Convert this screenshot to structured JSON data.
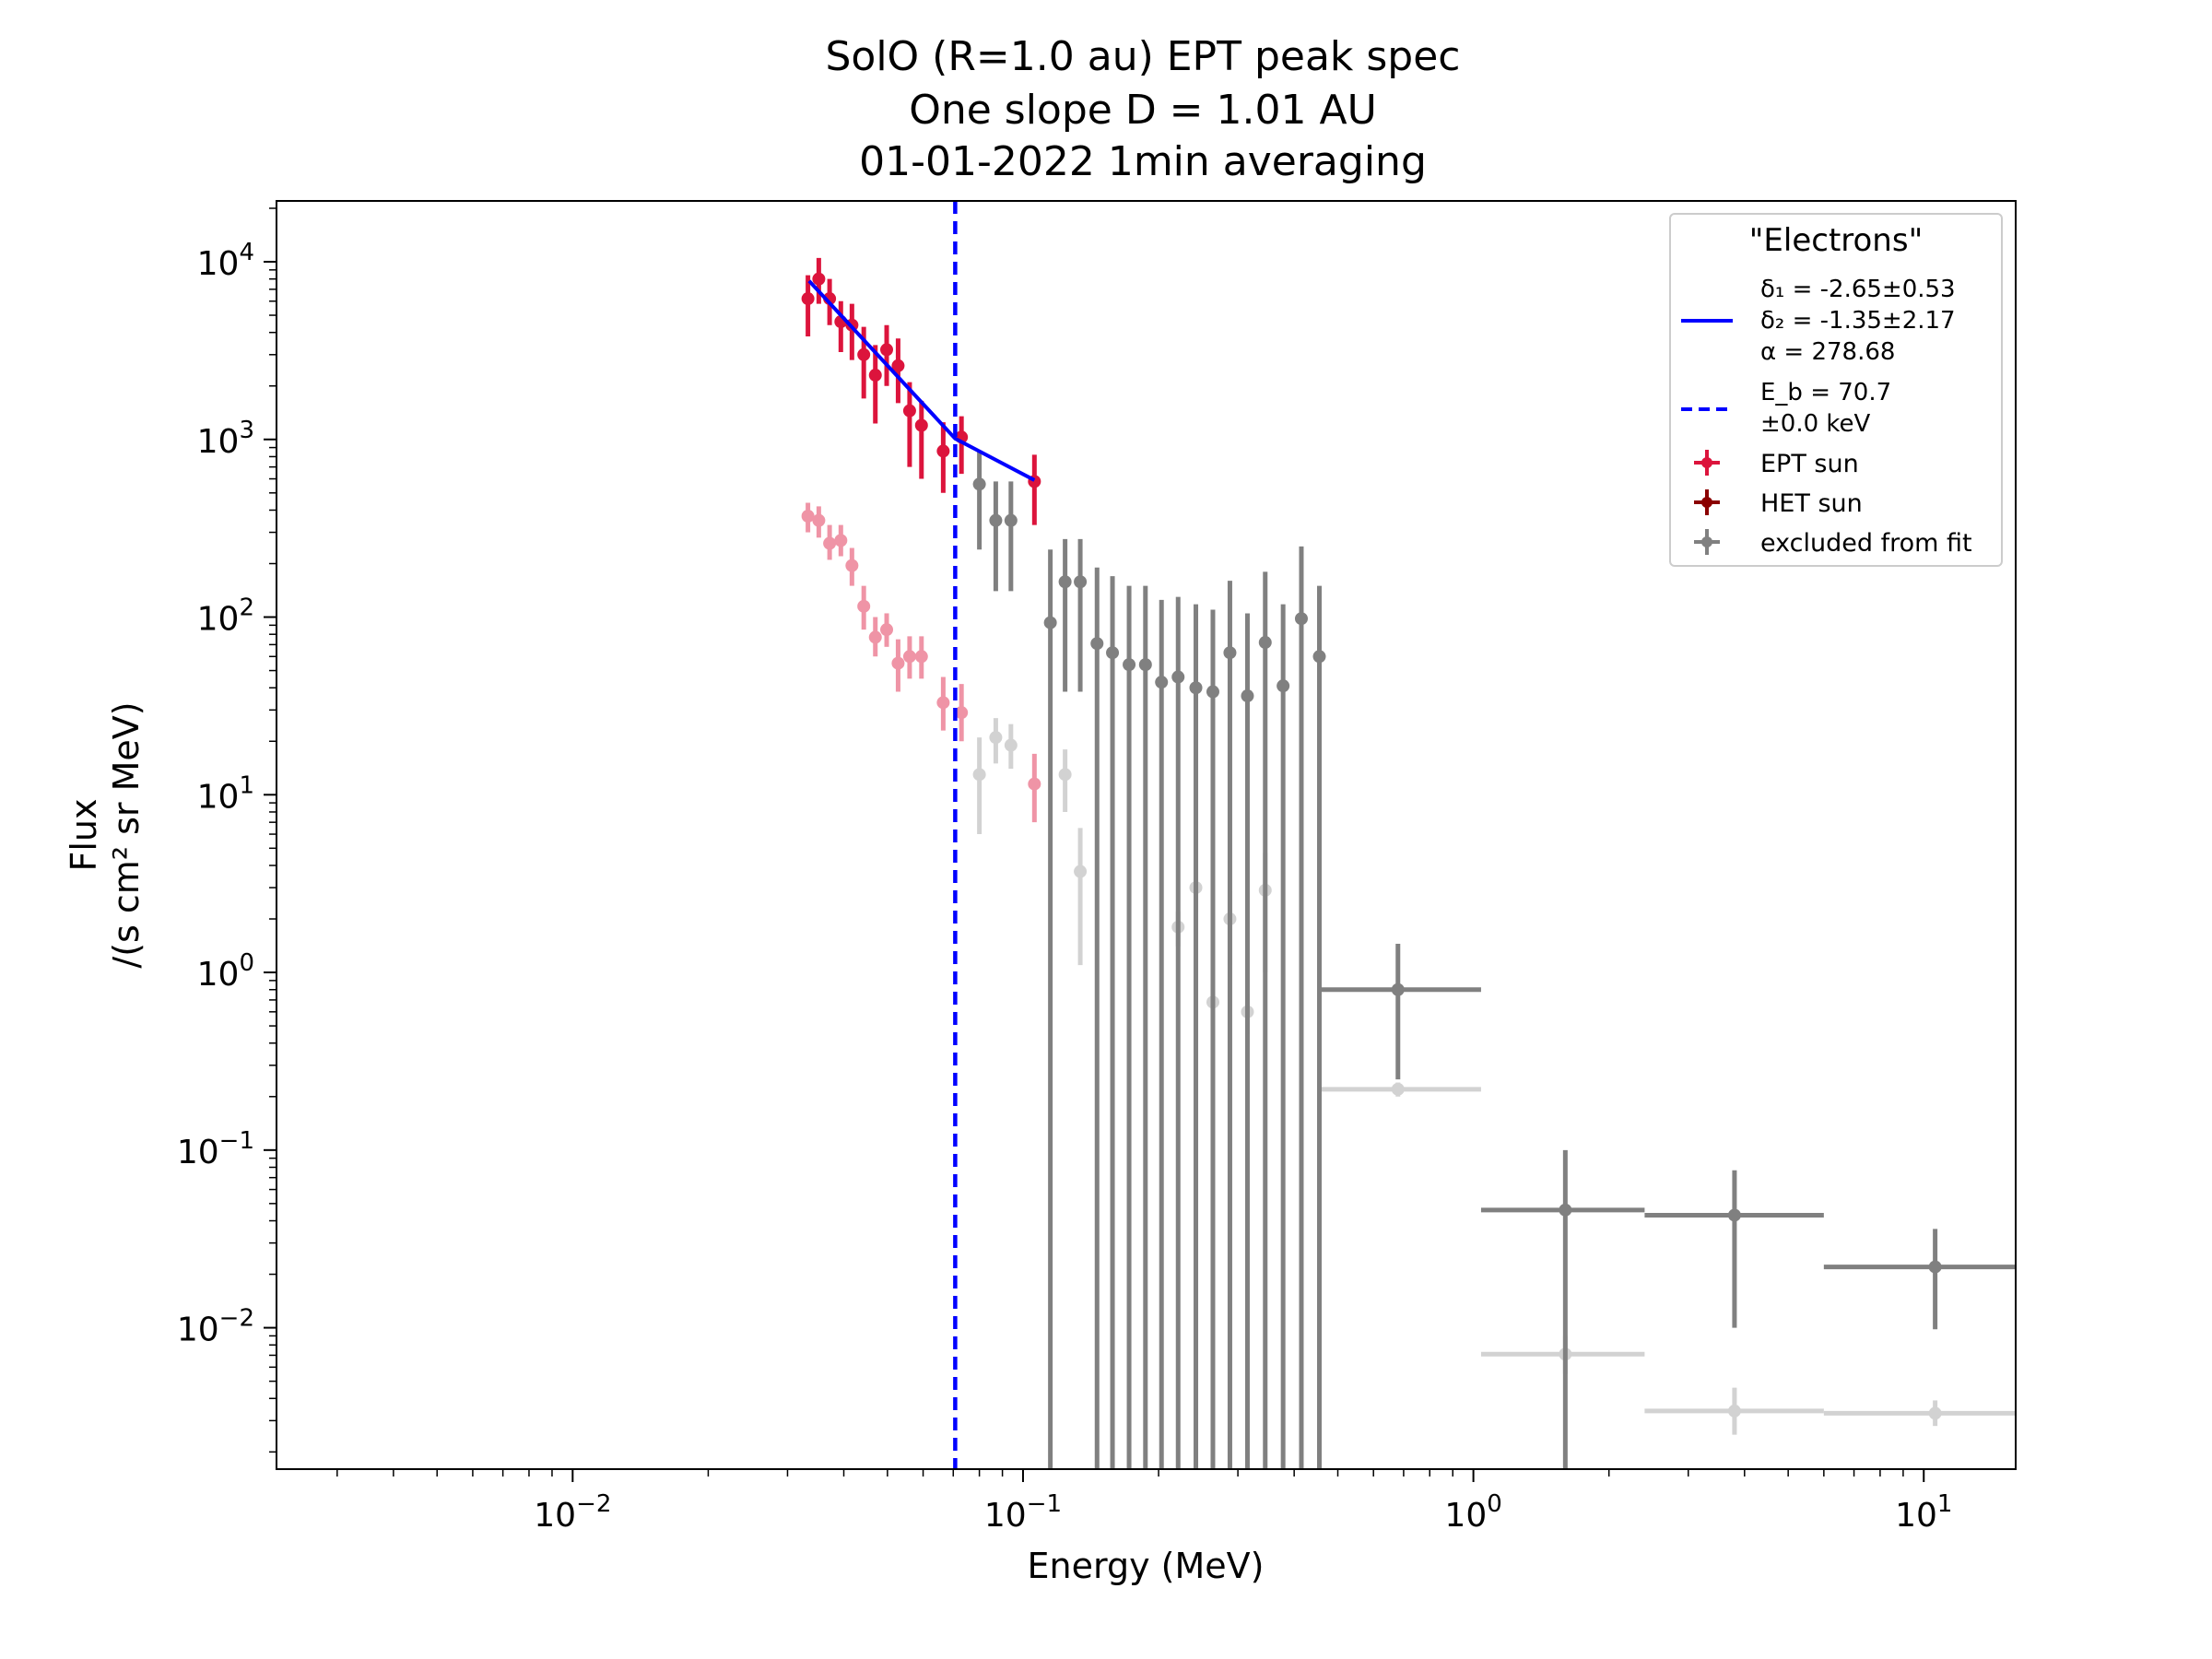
{
  "chart_data": {
    "type": "scatter",
    "title_lines": [
      "SolO  (R=1.0 au) EPT  peak spec",
      "One slope D = 1.01 AU",
      "01-01-2022  1min  averaging"
    ],
    "xlabel": "Energy (MeV)",
    "ylabel_lines": [
      "Flux",
      "/(s cm² sr MeV)"
    ],
    "x_scale": "log",
    "y_scale": "log",
    "xlim": [
      0.0022,
      16
    ],
    "ylim": [
      0.0016,
      22000
    ],
    "x_ticks": [
      {
        "value": 0.01,
        "base": "10",
        "exp": "−2"
      },
      {
        "value": 0.1,
        "base": "10",
        "exp": "−1"
      },
      {
        "value": 1,
        "base": "10",
        "exp": "0"
      },
      {
        "value": 10,
        "base": "10",
        "exp": "1"
      }
    ],
    "y_ticks": [
      {
        "value": 10000,
        "base": "10",
        "exp": "4"
      },
      {
        "value": 1000,
        "base": "10",
        "exp": "3"
      },
      {
        "value": 100,
        "base": "10",
        "exp": "2"
      },
      {
        "value": 10,
        "base": "10",
        "exp": "1"
      },
      {
        "value": 1,
        "base": "10",
        "exp": "0"
      },
      {
        "value": 0.1,
        "base": "10",
        "exp": "−1"
      },
      {
        "value": 0.01,
        "base": "10",
        "exp": "−2"
      }
    ],
    "colors": {
      "ept": "#dc143c",
      "het": "#8b0000",
      "excluded": "#808080",
      "fit": "#0000ff",
      "break": "#0000ff"
    },
    "legend": {
      "position": "top-right",
      "title": "\"Electrons\"",
      "fit_lines": [
        "δ₁ = -2.65±0.53",
        "δ₂ = -1.35±2.17",
        "α = 278.68"
      ],
      "break_lines": [
        "E_b =  70.7",
        "±0.0 keV"
      ],
      "entries": [
        {
          "label": "EPT sun",
          "color_key": "ept"
        },
        {
          "label": "HET sun",
          "color_key": "het"
        },
        {
          "label": "excluded from fit",
          "color_key": "excluded"
        }
      ]
    },
    "fit_line": {
      "x": [
        0.0335,
        0.0707,
        0.106
      ],
      "y": [
        7800,
        1010,
        590
      ]
    },
    "break_energy_mev": 0.0707,
    "series": [
      {
        "name": "EPT sun",
        "color_key": "ept",
        "alpha": 1.0,
        "points": [
          {
            "x": 0.0333,
            "y": 6200,
            "ylo": 3800,
            "yhi": 8400
          },
          {
            "x": 0.0352,
            "y": 8000,
            "ylo": 5800,
            "yhi": 10500
          },
          {
            "x": 0.0372,
            "y": 6200,
            "ylo": 4400,
            "yhi": 8000
          },
          {
            "x": 0.0394,
            "y": 4600,
            "ylo": 3100,
            "yhi": 6000
          },
          {
            "x": 0.0417,
            "y": 4400,
            "ylo": 2800,
            "yhi": 5800
          },
          {
            "x": 0.0443,
            "y": 3000,
            "ylo": 1700,
            "yhi": 4300
          },
          {
            "x": 0.047,
            "y": 2300,
            "ylo": 1230,
            "yhi": 3400
          },
          {
            "x": 0.0498,
            "y": 3200,
            "ylo": 2000,
            "yhi": 4400
          },
          {
            "x": 0.0528,
            "y": 2600,
            "ylo": 1600,
            "yhi": 3700
          },
          {
            "x": 0.056,
            "y": 1450,
            "ylo": 700,
            "yhi": 2100
          },
          {
            "x": 0.0595,
            "y": 1200,
            "ylo": 600,
            "yhi": 1650
          },
          {
            "x": 0.0665,
            "y": 860,
            "ylo": 500,
            "yhi": 1250
          },
          {
            "x": 0.073,
            "y": 1030,
            "ylo": 640,
            "yhi": 1350
          },
          {
            "x": 0.106,
            "y": 580,
            "ylo": 330,
            "yhi": 820
          }
        ]
      },
      {
        "name": "excluded from fit",
        "color_key": "excluded",
        "alpha": 1.0,
        "points": [
          {
            "x": 0.08,
            "y": 560,
            "ylo": 240,
            "yhi": 850
          },
          {
            "x": 0.087,
            "y": 350,
            "ylo": 140,
            "yhi": 580
          },
          {
            "x": 0.094,
            "y": 350,
            "ylo": 140,
            "yhi": 580
          },
          {
            "x": 0.115,
            "y": 93,
            "ylo": 0.0016,
            "yhi": 240
          },
          {
            "x": 0.124,
            "y": 158,
            "ylo": 38,
            "yhi": 275
          },
          {
            "x": 0.134,
            "y": 158,
            "ylo": 38,
            "yhi": 275
          },
          {
            "x": 0.146,
            "y": 71,
            "ylo": 0.0016,
            "yhi": 190
          },
          {
            "x": 0.158,
            "y": 63,
            "ylo": 0.0016,
            "yhi": 170
          },
          {
            "x": 0.172,
            "y": 54,
            "ylo": 0.0016,
            "yhi": 150
          },
          {
            "x": 0.187,
            "y": 54,
            "ylo": 0.0016,
            "yhi": 150
          },
          {
            "x": 0.203,
            "y": 43,
            "ylo": 0.0016,
            "yhi": 125
          },
          {
            "x": 0.221,
            "y": 46,
            "ylo": 0.0016,
            "yhi": 130
          },
          {
            "x": 0.242,
            "y": 40,
            "ylo": 0.0016,
            "yhi": 118
          },
          {
            "x": 0.264,
            "y": 38,
            "ylo": 0.0016,
            "yhi": 110
          },
          {
            "x": 0.288,
            "y": 63,
            "ylo": 0.0016,
            "yhi": 160
          },
          {
            "x": 0.315,
            "y": 36,
            "ylo": 0.0016,
            "yhi": 105
          },
          {
            "x": 0.345,
            "y": 72,
            "ylo": 0.0016,
            "yhi": 180
          },
          {
            "x": 0.378,
            "y": 41,
            "ylo": 0.0016,
            "yhi": 118
          },
          {
            "x": 0.415,
            "y": 98,
            "ylo": 0.0016,
            "yhi": 250
          },
          {
            "x": 0.455,
            "y": 60,
            "ylo": 0.0016,
            "yhi": 150
          },
          {
            "x": 0.68,
            "y": 0.8,
            "ylo": 0.25,
            "xlo": 0.46,
            "xhi": 1.04,
            "yhi": 1.45
          },
          {
            "x": 1.6,
            "y": 0.046,
            "ylo": 0.0016,
            "xlo": 1.04,
            "xhi": 2.4,
            "yhi": 0.1
          },
          {
            "x": 3.8,
            "y": 0.043,
            "ylo": 0.01,
            "xlo": 2.4,
            "xhi": 6.0,
            "yhi": 0.077
          },
          {
            "x": 10.6,
            "y": 0.022,
            "ylo": 0.0098,
            "xlo": 6.0,
            "xhi": 16,
            "yhi": 0.036
          }
        ]
      },
      {
        "name": "EPT sun (faint)",
        "color_key": "ept",
        "alpha": 0.45,
        "points": [
          {
            "x": 0.0333,
            "y": 370,
            "ylo": 300,
            "yhi": 440
          },
          {
            "x": 0.0352,
            "y": 350,
            "ylo": 280,
            "yhi": 420
          },
          {
            "x": 0.0372,
            "y": 260,
            "ylo": 210,
            "yhi": 330
          },
          {
            "x": 0.0394,
            "y": 270,
            "ylo": 220,
            "yhi": 330
          },
          {
            "x": 0.0417,
            "y": 195,
            "ylo": 150,
            "yhi": 245
          },
          {
            "x": 0.0443,
            "y": 115,
            "ylo": 85,
            "yhi": 150
          },
          {
            "x": 0.047,
            "y": 77,
            "ylo": 60,
            "yhi": 100
          },
          {
            "x": 0.0498,
            "y": 85,
            "ylo": 68,
            "yhi": 105
          },
          {
            "x": 0.0528,
            "y": 55,
            "ylo": 38,
            "yhi": 75
          },
          {
            "x": 0.056,
            "y": 60,
            "ylo": 45,
            "yhi": 78
          },
          {
            "x": 0.0595,
            "y": 60,
            "ylo": 45,
            "yhi": 78
          },
          {
            "x": 0.0665,
            "y": 33,
            "ylo": 23,
            "yhi": 46
          },
          {
            "x": 0.073,
            "y": 29,
            "ylo": 20,
            "yhi": 42
          },
          {
            "x": 0.106,
            "y": 11.5,
            "ylo": 7,
            "yhi": 17
          }
        ]
      },
      {
        "name": "excluded from fit (faint)",
        "color_key": "excluded",
        "alpha": 0.35,
        "points": [
          {
            "x": 0.08,
            "y": 13,
            "ylo": 6,
            "yhi": 21
          },
          {
            "x": 0.087,
            "y": 21,
            "ylo": 15,
            "yhi": 27
          },
          {
            "x": 0.094,
            "y": 19,
            "ylo": 14,
            "yhi": 25
          },
          {
            "x": 0.124,
            "y": 13,
            "ylo": 8,
            "yhi": 18
          },
          {
            "x": 0.134,
            "y": 3.7,
            "ylo": 1.1,
            "yhi": 6.5
          },
          {
            "x": 0.221,
            "y": 1.8,
            "ylo": 1.4,
            "yhi": 2.2
          },
          {
            "x": 0.242,
            "y": 3.0,
            "ylo": 2.2,
            "yhi": 3.8
          },
          {
            "x": 0.264,
            "y": 0.68,
            "ylo": 0.5,
            "yhi": 0.86
          },
          {
            "x": 0.288,
            "y": 2.0,
            "ylo": 1.1,
            "yhi": 2.9
          },
          {
            "x": 0.315,
            "y": 0.6,
            "ylo": 0.45,
            "yhi": 0.75
          },
          {
            "x": 0.345,
            "y": 2.9,
            "ylo": 1.0,
            "yhi": 4.7
          },
          {
            "x": 0.68,
            "y": 0.22,
            "ylo": 0.2,
            "xlo": 0.46,
            "xhi": 1.04,
            "yhi": 0.24
          },
          {
            "x": 1.6,
            "y": 0.0071,
            "ylo": 0.0055,
            "xlo": 1.04,
            "xhi": 2.4,
            "yhi": 0.009
          },
          {
            "x": 3.8,
            "y": 0.0034,
            "ylo": 0.0025,
            "xlo": 2.4,
            "xhi": 6.0,
            "yhi": 0.0046
          },
          {
            "x": 10.6,
            "y": 0.0033,
            "ylo": 0.0028,
            "xlo": 6.0,
            "xhi": 16,
            "yhi": 0.0039
          }
        ]
      }
    ]
  }
}
